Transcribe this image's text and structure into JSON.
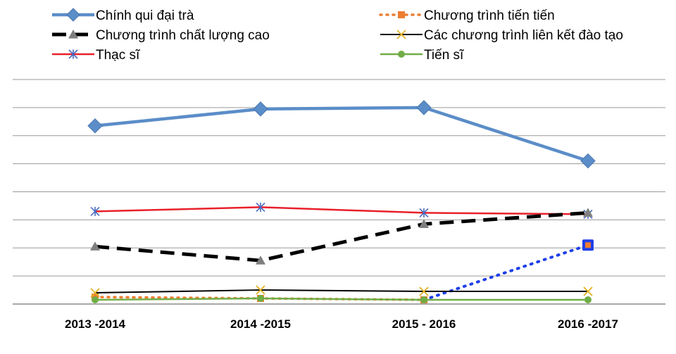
{
  "chart_data": {
    "type": "line",
    "categories": [
      "2013 -2014",
      "2014 -2015",
      "2015 - 2016",
      "2016 -2017"
    ],
    "y_axis_labels_shown": false,
    "ylim": [
      0,
      8
    ],
    "grid": true,
    "legend_position": "top",
    "series": [
      {
        "name": "Chính qui đại trà",
        "values": [
          6.35,
          6.95,
          7.0,
          5.1
        ],
        "color": "#5b8dc8",
        "marker": "diamond",
        "dash": "solid"
      },
      {
        "name": "Chương trình tiến tiến",
        "values": [
          0.25,
          0.2,
          0.15,
          2.1
        ],
        "color": "#ed7d31",
        "marker": "square",
        "dash": "dotted"
      },
      {
        "name": "Chương trình chất lượng cao",
        "values": [
          2.05,
          1.55,
          2.85,
          3.25
        ],
        "color": "#000000",
        "marker": "triangle",
        "dash": "dashed"
      },
      {
        "name": "Các chương trình liên kết đào tạo",
        "values": [
          0.4,
          0.5,
          0.45,
          0.45
        ],
        "color": "#000000",
        "marker": "x",
        "dash": "solid"
      },
      {
        "name": "Thạc sĩ",
        "values": [
          3.3,
          3.45,
          3.25,
          3.2
        ],
        "color": "#e8202a",
        "marker": "star",
        "dash": "solid"
      },
      {
        "name": "Tiến sĩ",
        "values": [
          0.15,
          0.2,
          0.15,
          0.15
        ],
        "color": "#70ad47",
        "marker": "circle",
        "dash": "solid"
      }
    ]
  }
}
